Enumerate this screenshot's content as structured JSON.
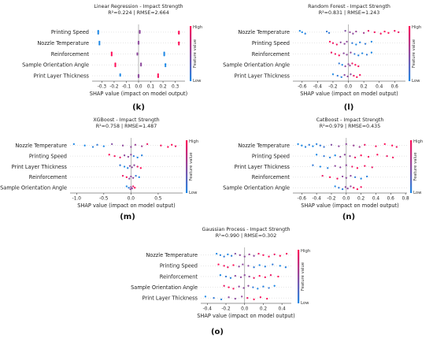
{
  "colors": {
    "low": "#1e88e5",
    "high": "#ff0d57",
    "axis": "#333333",
    "zero_line": "#999999"
  },
  "colorbar": {
    "high": "High",
    "low": "Low",
    "label": "Feature value"
  },
  "chart_data": [
    {
      "type": "scatter",
      "panel_label": "(k)",
      "title": "Linear Regression - Impact Strength",
      "subtitle": "R²=0.224 | RMSE=2.664",
      "xlabel": "SHAP value (impact on model output)",
      "xlim": [
        -0.38,
        0.38
      ],
      "xticks": [
        -0.3,
        -0.2,
        -0.1,
        0.0,
        0.1,
        0.2,
        0.3
      ],
      "features": [
        "Printing Speed",
        "Nozzle Temperature",
        "Reinforcement",
        "Sample Orientation Angle",
        "Print Layer Thickness"
      ],
      "series": [
        {
          "values": [
            -0.33,
            -0.33,
            -0.33,
            0.01,
            0.01,
            0.01,
            0.01,
            0.33,
            0.33,
            0.33
          ],
          "feature_values": [
            0.0,
            0.0,
            0.0,
            0.5,
            0.5,
            0.5,
            0.5,
            1.0,
            1.0,
            1.0
          ]
        },
        {
          "values": [
            -0.32,
            -0.32,
            -0.32,
            0.0,
            0.0,
            0.0,
            0.33,
            0.33,
            0.33
          ],
          "feature_values": [
            0.0,
            0.0,
            0.0,
            0.5,
            0.5,
            0.5,
            1.0,
            1.0,
            1.0
          ]
        },
        {
          "values": [
            -0.22,
            -0.22,
            -0.22,
            -0.01,
            -0.01,
            0.21,
            0.21,
            0.21
          ],
          "feature_values": [
            1.0,
            1.0,
            1.0,
            0.5,
            0.5,
            0.0,
            0.0,
            0.0
          ]
        },
        {
          "values": [
            -0.19,
            -0.19,
            -0.19,
            0.02,
            0.02,
            0.02,
            0.22,
            0.22,
            0.22
          ],
          "feature_values": [
            1.0,
            1.0,
            1.0,
            0.5,
            0.5,
            0.5,
            0.0,
            0.0,
            0.0
          ]
        },
        {
          "values": [
            -0.15,
            -0.15,
            0.0,
            0.0,
            0.0,
            0.16,
            0.16,
            0.16
          ],
          "feature_values": [
            0.0,
            0.0,
            0.5,
            0.5,
            0.5,
            1.0,
            1.0,
            1.0
          ]
        }
      ]
    },
    {
      "type": "scatter",
      "panel_label": "(l)",
      "title": "Random Forest - Impact Strength",
      "subtitle": "R²=0.831 | RMSE=1.243",
      "xlabel": "SHAP value (impact on model output)",
      "xlim": [
        -0.72,
        0.74
      ],
      "xticks": [
        -0.6,
        -0.4,
        -0.2,
        0.0,
        0.2,
        0.4,
        0.6
      ],
      "features": [
        "Nozzle Temperature",
        "Printing Speed",
        "Reinforcement",
        "Sample Orientation Angle",
        "Print Layer Thickness"
      ],
      "series": [
        {
          "values": [
            -0.63,
            -0.6,
            -0.56,
            -0.28,
            -0.25,
            -0.04,
            0.02,
            0.06,
            0.1,
            0.2,
            0.26,
            0.34,
            0.42,
            0.47,
            0.52,
            0.6,
            0.65
          ],
          "feature_values": [
            0.0,
            0.0,
            0.05,
            0.1,
            0.1,
            0.45,
            0.5,
            0.5,
            0.55,
            0.6,
            0.9,
            0.95,
            0.95,
            1.0,
            1.0,
            0.95,
            0.9
          ]
        },
        {
          "values": [
            -0.24,
            -0.2,
            -0.15,
            -0.1,
            -0.05,
            -0.02,
            0.05,
            0.1,
            0.15,
            0.22,
            0.3
          ],
          "feature_values": [
            1.0,
            0.9,
            0.95,
            0.5,
            0.5,
            0.5,
            0.1,
            0.0,
            0.05,
            0.1,
            0.0
          ]
        },
        {
          "values": [
            -0.22,
            -0.17,
            -0.12,
            -0.06,
            -0.02,
            0.03,
            0.08,
            0.13,
            0.18,
            0.24,
            0.3
          ],
          "feature_values": [
            0.9,
            0.95,
            1.0,
            0.5,
            0.5,
            0.5,
            0.1,
            0.05,
            0.0,
            0.1,
            0.0
          ]
        },
        {
          "values": [
            -0.12,
            -0.08,
            -0.04,
            0.0,
            0.02,
            0.05,
            0.09,
            0.13
          ],
          "feature_values": [
            0.1,
            0.0,
            0.5,
            0.5,
            0.5,
            0.9,
            1.0,
            0.95
          ]
        },
        {
          "values": [
            -0.2,
            -0.14,
            -0.09,
            -0.05,
            -0.01,
            0.03,
            0.07,
            0.11,
            0.15
          ],
          "feature_values": [
            0.0,
            0.1,
            0.05,
            0.5,
            0.5,
            0.5,
            0.9,
            1.0,
            0.95
          ]
        }
      ]
    },
    {
      "type": "scatter",
      "panel_label": "(m)",
      "title": "XGBoost - Impact Strength",
      "subtitle": "R²=0.758 | RMSE=1.487",
      "xlabel": "SHAP value (impact on model output)",
      "xlim": [
        -1.12,
        0.95
      ],
      "xticks": [
        -1.0,
        -0.5,
        0.0,
        0.5
      ],
      "features": [
        "Nozzle Temperature",
        "Printing Speed",
        "Print Layer Thickness",
        "Reinforcement",
        "Sample Orientation Angle"
      ],
      "series": [
        {
          "values": [
            -1.05,
            -0.85,
            -0.7,
            -0.62,
            -0.5,
            -0.35,
            -0.15,
            0.0,
            0.08,
            0.2,
            0.3,
            0.55,
            0.68,
            0.75,
            0.82
          ],
          "feature_values": [
            0.0,
            0.0,
            0.05,
            0.1,
            0.0,
            0.45,
            0.5,
            0.5,
            0.55,
            0.6,
            0.9,
            0.95,
            1.0,
            1.0,
            0.9
          ]
        },
        {
          "values": [
            -0.4,
            -0.3,
            -0.2,
            -0.12,
            -0.05,
            0.0,
            0.05,
            0.12,
            0.2
          ],
          "feature_values": [
            1.0,
            0.95,
            0.9,
            0.5,
            0.5,
            0.5,
            0.1,
            0.0,
            0.05
          ]
        },
        {
          "values": [
            -0.2,
            -0.12,
            -0.06,
            -0.02,
            0.02,
            0.06,
            0.12,
            0.18
          ],
          "feature_values": [
            0.1,
            0.0,
            0.05,
            0.5,
            0.5,
            0.5,
            0.9,
            1.0
          ]
        },
        {
          "values": [
            -0.15,
            -0.08,
            -0.03,
            0.0,
            0.04,
            0.09,
            0.15
          ],
          "feature_values": [
            0.9,
            1.0,
            0.5,
            0.5,
            0.5,
            0.1,
            0.0
          ]
        },
        {
          "values": [
            -0.08,
            -0.04,
            -0.01,
            0.0,
            0.02,
            0.04,
            0.07
          ],
          "feature_values": [
            0.0,
            0.1,
            0.5,
            0.5,
            0.5,
            0.9,
            1.0
          ]
        }
      ]
    },
    {
      "type": "scatter",
      "panel_label": "(n)",
      "title": "CatBoost - Impact Strength",
      "subtitle": "R²=0.979 | RMSE=0.435",
      "xlabel": "SHAP value (impact on model output)",
      "xlim": [
        -0.72,
        0.82
      ],
      "xticks": [
        -0.6,
        -0.4,
        -0.2,
        0.0,
        0.2,
        0.4,
        0.6,
        0.8
      ],
      "features": [
        "Nozzle Temperature",
        "Printing Speed",
        "Print Layer Thickness",
        "Reinforcement",
        "Sample Orientation Angle"
      ],
      "series": [
        {
          "values": [
            -0.65,
            -0.6,
            -0.55,
            -0.5,
            -0.45,
            -0.4,
            -0.35,
            -0.3,
            -0.2,
            -0.1,
            0.0,
            0.1,
            0.18,
            0.25,
            0.4,
            0.52,
            0.62,
            0.68
          ],
          "feature_values": [
            0.0,
            0.0,
            0.05,
            0.1,
            0.0,
            0.05,
            0.1,
            0.15,
            0.45,
            0.5,
            0.5,
            0.55,
            0.6,
            0.9,
            0.95,
            1.0,
            1.0,
            0.9
          ]
        },
        {
          "values": [
            -0.4,
            -0.3,
            -0.22,
            -0.15,
            -0.08,
            -0.02,
            0.05,
            0.12,
            0.2,
            0.3,
            0.42,
            0.55,
            0.63
          ],
          "feature_values": [
            0.0,
            0.1,
            0.05,
            0.0,
            0.5,
            0.5,
            0.5,
            0.9,
            1.0,
            0.95,
            1.0,
            0.9,
            0.95
          ]
        },
        {
          "values": [
            -0.45,
            -0.35,
            -0.25,
            -0.15,
            -0.08,
            0.0,
            0.08,
            0.15,
            0.25,
            0.35
          ],
          "feature_values": [
            0.1,
            0.0,
            0.05,
            0.5,
            0.5,
            0.5,
            0.9,
            1.0,
            0.95,
            0.9
          ]
        },
        {
          "values": [
            -0.32,
            -0.22,
            -0.12,
            -0.05,
            0.0,
            0.06,
            0.12,
            0.2,
            0.28
          ],
          "feature_values": [
            0.9,
            1.0,
            0.95,
            0.5,
            0.5,
            0.5,
            0.1,
            0.0,
            0.05
          ]
        },
        {
          "values": [
            -0.15,
            -0.1,
            -0.05,
            -0.01,
            0.02,
            0.06,
            0.1,
            0.15,
            0.2
          ],
          "feature_values": [
            0.0,
            0.1,
            0.05,
            0.5,
            0.5,
            0.5,
            0.9,
            1.0,
            0.95
          ]
        }
      ]
    },
    {
      "type": "scatter",
      "panel_label": "(o)",
      "title": "Gaussian Process - Impact Strength",
      "subtitle": "R²=0.990 | RMSE=0.302",
      "xlabel": "SHAP value (impact on model output)",
      "xlim": [
        -0.47,
        0.5
      ],
      "xticks": [
        -0.4,
        -0.2,
        0.0,
        0.2,
        0.4
      ],
      "features": [
        "Nozzle Temperature",
        "Printing Speed",
        "Reinforcement",
        "Sample Orientation Angle",
        "Print Layer Thickness"
      ],
      "series": [
        {
          "values": [
            -0.3,
            -0.26,
            -0.22,
            -0.18,
            -0.14,
            -0.1,
            -0.05,
            0.0,
            0.05,
            0.1,
            0.15,
            0.2,
            0.26,
            0.32,
            0.38,
            0.45
          ],
          "feature_values": [
            0.0,
            0.05,
            0.1,
            0.0,
            0.1,
            0.45,
            0.5,
            0.5,
            0.55,
            0.5,
            0.9,
            0.95,
            1.0,
            0.9,
            1.0,
            0.95
          ]
        },
        {
          "values": [
            -0.28,
            -0.22,
            -0.18,
            -0.12,
            -0.06,
            -0.02,
            0.04,
            0.1,
            0.16,
            0.22,
            0.3,
            0.38,
            0.44
          ],
          "feature_values": [
            1.0,
            0.95,
            0.9,
            1.0,
            0.5,
            0.5,
            0.5,
            0.1,
            0.0,
            0.05,
            0.1,
            0.0,
            0.05
          ]
        },
        {
          "values": [
            -0.26,
            -0.2,
            -0.15,
            -0.1,
            -0.04,
            0.0,
            0.05,
            0.1,
            0.16,
            0.22,
            0.28,
            0.36
          ],
          "feature_values": [
            0.0,
            0.1,
            0.05,
            0.5,
            0.5,
            0.5,
            0.5,
            0.9,
            1.0,
            0.95,
            0.9,
            1.0
          ]
        },
        {
          "values": [
            -0.22,
            -0.17,
            -0.12,
            -0.06,
            -0.01,
            0.04,
            0.09,
            0.14,
            0.2,
            0.26,
            0.32
          ],
          "feature_values": [
            0.9,
            1.0,
            0.95,
            0.5,
            0.5,
            0.5,
            0.1,
            0.0,
            0.05,
            0.1,
            0.0
          ]
        },
        {
          "values": [
            -0.42,
            -0.33,
            -0.25,
            -0.17,
            -0.1,
            -0.03,
            0.03,
            0.1,
            0.17,
            0.24
          ],
          "feature_values": [
            0.0,
            0.1,
            0.05,
            0.5,
            0.5,
            0.5,
            0.9,
            1.0,
            0.95,
            1.0
          ]
        }
      ]
    }
  ]
}
